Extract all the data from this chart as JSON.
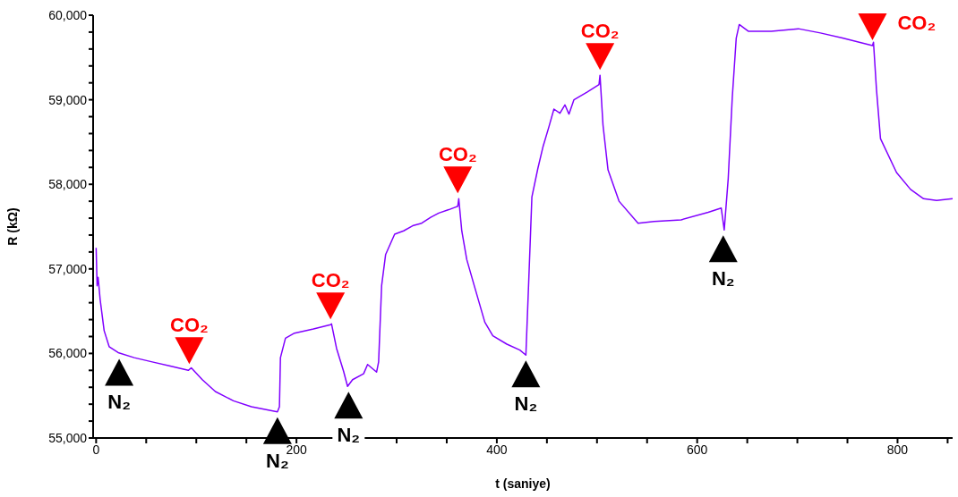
{
  "chart_data": {
    "type": "line",
    "xlabel": "t (saniye)",
    "ylabel": "R (kΩ)",
    "x": [
      0,
      1,
      2,
      4,
      8,
      13,
      22,
      38,
      56,
      74,
      92,
      95,
      106,
      119,
      137,
      155,
      172,
      181,
      183,
      184,
      189,
      198,
      217,
      234,
      235,
      240,
      247,
      251,
      256,
      267,
      271,
      280,
      282,
      285,
      289,
      298,
      307,
      316,
      325,
      334,
      342,
      352,
      361,
      362,
      365,
      370,
      378,
      388,
      396,
      410,
      423,
      429,
      432,
      435,
      441,
      446,
      452,
      457,
      463,
      468,
      472,
      477,
      490,
      502,
      503,
      506,
      511,
      522,
      541,
      557,
      584,
      611,
      624,
      627,
      631,
      635,
      639,
      642,
      651,
      674,
      701,
      723,
      745,
      775,
      776,
      779,
      783,
      799,
      813,
      826,
      839,
      855
    ],
    "series": [
      {
        "color": "#8000ff",
        "values": [
          57250,
          56800,
          56900,
          56640,
          56270,
          56080,
          56010,
          55950,
          55900,
          55850,
          55800,
          55830,
          55690,
          55550,
          55440,
          55370,
          55330,
          55310,
          55370,
          55950,
          56180,
          56240,
          56290,
          56340,
          56350,
          56060,
          55790,
          55610,
          55690,
          55760,
          55870,
          55780,
          55900,
          56800,
          57170,
          57410,
          57450,
          57510,
          57540,
          57610,
          57660,
          57700,
          57740,
          57830,
          57450,
          57110,
          56780,
          56370,
          56210,
          56110,
          56040,
          55980,
          56900,
          57850,
          58190,
          58440,
          58680,
          58890,
          58840,
          58940,
          58830,
          59000,
          59090,
          59180,
          59290,
          58700,
          58170,
          57800,
          57540,
          57560,
          57580,
          57670,
          57720,
          57460,
          58070,
          59020,
          59730,
          59890,
          59810,
          59810,
          59840,
          59790,
          59730,
          59640,
          59680,
          59120,
          58540,
          58140,
          57940,
          57830,
          57810,
          57830
        ]
      }
    ],
    "xlim": [
      -3,
      855
    ],
    "xticks": [
      0,
      {
        "value": 50,
        "label": null
      },
      {
        "value": 100,
        "label": null
      },
      {
        "value": 150,
        "label": null
      },
      200,
      {
        "value": 250,
        "label": null
      },
      {
        "value": 300,
        "label": null
      },
      {
        "value": 350,
        "label": null
      },
      400,
      {
        "value": 450,
        "label": null
      },
      {
        "value": 500,
        "label": null
      },
      {
        "value": 550,
        "label": null
      },
      600,
      {
        "value": 650,
        "label": null
      },
      {
        "value": 700,
        "label": null
      },
      {
        "value": 750,
        "label": null
      },
      800,
      {
        "value": 850,
        "label": null
      }
    ],
    "ylim": [
      55000,
      60000
    ],
    "yticks": [
      {
        "value": 55000,
        "label": "55,000"
      },
      {
        "value": 55200,
        "label": null
      },
      {
        "value": 55400,
        "label": null
      },
      {
        "value": 55600,
        "label": null
      },
      {
        "value": 55800,
        "label": null
      },
      {
        "value": 56000,
        "label": "56,000"
      },
      {
        "value": 56200,
        "label": null
      },
      {
        "value": 56400,
        "label": null
      },
      {
        "value": 56600,
        "label": null
      },
      {
        "value": 56800,
        "label": null
      },
      {
        "value": 57000,
        "label": "57,000"
      },
      {
        "value": 57200,
        "label": null
      },
      {
        "value": 57400,
        "label": null
      },
      {
        "value": 57600,
        "label": null
      },
      {
        "value": 57800,
        "label": null
      },
      {
        "value": 58000,
        "label": "58,000"
      },
      {
        "value": 58200,
        "label": null
      },
      {
        "value": 58400,
        "label": null
      },
      {
        "value": 58600,
        "label": null
      },
      {
        "value": 58800,
        "label": null
      },
      {
        "value": 59000,
        "label": "59,000"
      },
      {
        "value": 59200,
        "label": null
      },
      {
        "value": 59400,
        "label": null
      },
      {
        "value": 59600,
        "label": null
      },
      {
        "value": 59800,
        "label": null
      },
      {
        "value": 60000,
        "label": "60,000"
      }
    ],
    "marker": "none",
    "line_style": "solid",
    "annotations": [
      {
        "text": "N₂",
        "x": 23,
        "y": 56000
      },
      {
        "text": "CO₂",
        "x": 93,
        "y": 55810
      },
      {
        "text": "N₂",
        "x": 181,
        "y": 55310
      },
      {
        "text": "CO₂",
        "x": 234,
        "y": 56340
      },
      {
        "text": "N₂",
        "x": 252,
        "y": 55610
      },
      {
        "text": "CO₂",
        "x": 361,
        "y": 57830
      },
      {
        "text": "N₂",
        "x": 429,
        "y": 55980
      },
      {
        "text": "CO₂",
        "x": 503,
        "y": 59290
      },
      {
        "text": "N₂",
        "x": 626,
        "y": 57460
      },
      {
        "text": "CO₂",
        "x": 775,
        "y": 59640
      }
    ]
  }
}
